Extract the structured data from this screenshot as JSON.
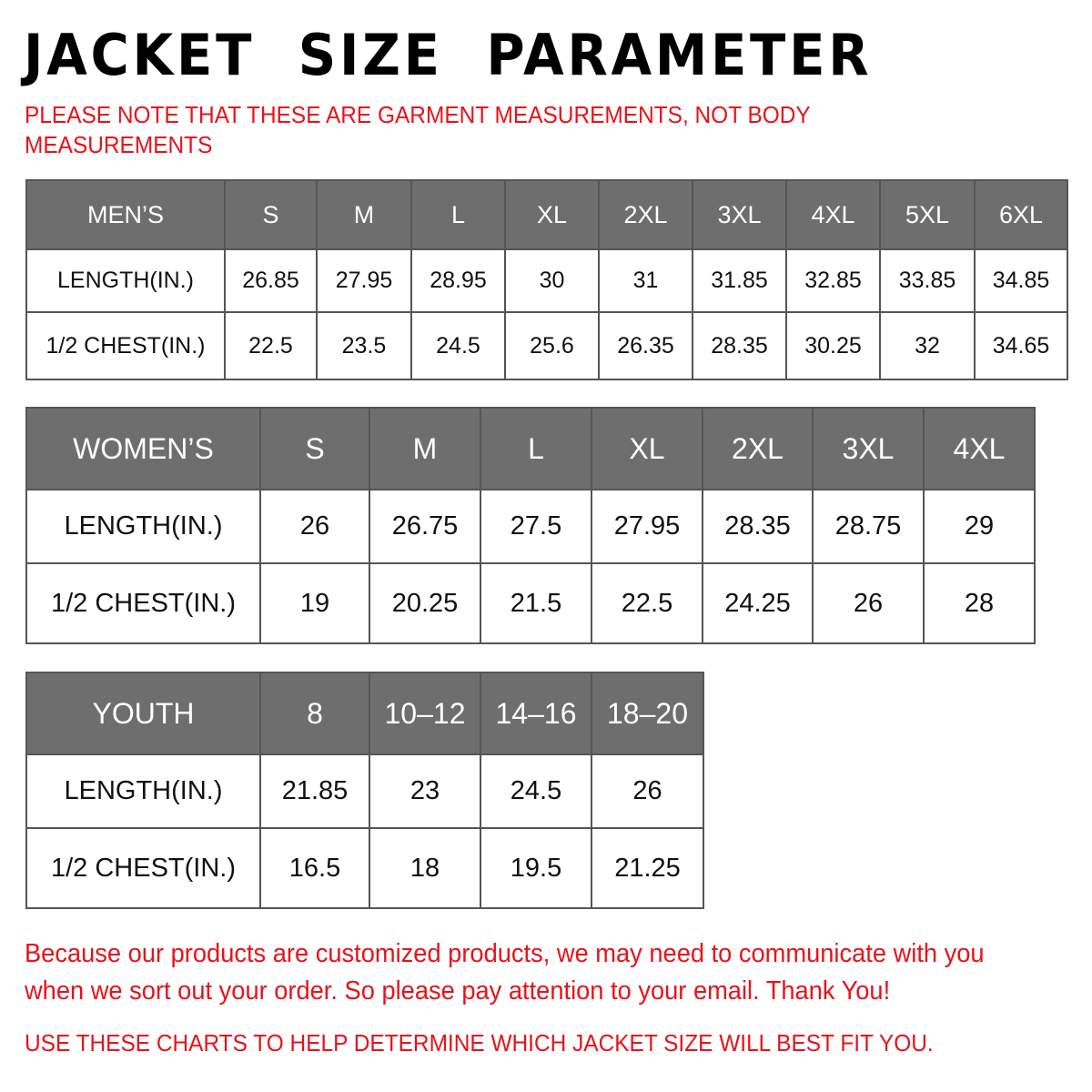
{
  "title": "JACKET  SIZE  PARAMETER",
  "note": "PLEASE NOTE THAT THESE ARE GARMENT MEASUREMENTS, NOT BODY MEASUREMENTS",
  "header_color": "#6e6e6e",
  "accent_color": "#e8121a",
  "mens": {
    "header": [
      "MEN’S",
      "S",
      "M",
      "L",
      "XL",
      "2XL",
      "3XL",
      "4XL",
      "5XL",
      "6XL"
    ],
    "rows": [
      [
        "LENGTH(IN.)",
        "26.85",
        "27.95",
        "28.95",
        "30",
        "31",
        "31.85",
        "32.85",
        "33.85",
        "34.85"
      ],
      [
        "1/2 CHEST(IN.)",
        "22.5",
        "23.5",
        "24.5",
        "25.6",
        "26.35",
        "28.35",
        "30.25",
        "32",
        "34.65"
      ]
    ]
  },
  "womens": {
    "header": [
      "WOMEN’S",
      "S",
      "M",
      "L",
      "XL",
      "2XL",
      "3XL",
      "4XL"
    ],
    "rows": [
      [
        "LENGTH(IN.)",
        "26",
        "26.75",
        "27.5",
        "27.95",
        "28.35",
        "28.75",
        "29"
      ],
      [
        "1/2 CHEST(IN.)",
        "19",
        "20.25",
        "21.5",
        "22.5",
        "24.25",
        "26",
        "28"
      ]
    ]
  },
  "youth": {
    "header": [
      "YOUTH",
      "8",
      "10–12",
      "14–16",
      "18–20"
    ],
    "rows": [
      [
        "LENGTH(IN.)",
        "21.85",
        "23",
        "24.5",
        "26"
      ],
      [
        "1/2 CHEST(IN.)",
        "16.5",
        "18",
        "19.5",
        "21.25"
      ]
    ]
  },
  "footer": {
    "message": "Because our products are customized products, we may need to communicate with you when we sort out your order. So please pay attention to your email. Thank You!",
    "advice": "USE THESE CHARTS TO HELP DETERMINE WHICH JACKET SIZE WILL BEST FIT YOU."
  }
}
